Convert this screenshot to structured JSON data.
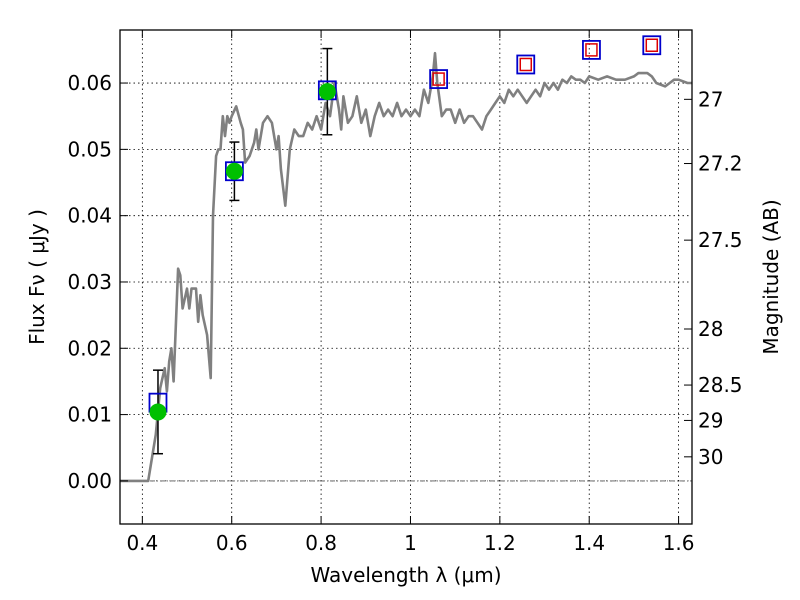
{
  "chart_data": {
    "type": "scatter",
    "xlabel": "Wavelength  λ (μm)",
    "ylabel": "Flux  Fν  ( μJy )",
    "y2label": "Magnitude (AB)",
    "xlim": [
      0.35,
      1.63
    ],
    "ylim": [
      -0.0065,
      0.068
    ],
    "grid": true,
    "x_ticks": [
      {
        "v": 0.4,
        "label": "0.4"
      },
      {
        "v": 0.6,
        "label": "0.6"
      },
      {
        "v": 0.8,
        "label": "0.8"
      },
      {
        "v": 1.0,
        "label": "1"
      },
      {
        "v": 1.2,
        "label": "1.2"
      },
      {
        "v": 1.4,
        "label": "1.4"
      },
      {
        "v": 1.6,
        "label": "1.6"
      }
    ],
    "y_ticks": [
      {
        "v": 0.0,
        "label": "0.00"
      },
      {
        "v": 0.01,
        "label": "0.01"
      },
      {
        "v": 0.02,
        "label": "0.02"
      },
      {
        "v": 0.03,
        "label": "0.03"
      },
      {
        "v": 0.04,
        "label": "0.04"
      },
      {
        "v": 0.05,
        "label": "0.05"
      },
      {
        "v": 0.06,
        "label": "0.06"
      }
    ],
    "mag_ticks": [
      {
        "v": 27,
        "label": "27"
      },
      {
        "v": 27.2,
        "label": "27.2"
      },
      {
        "v": 27.5,
        "label": "27.5"
      },
      {
        "v": 28,
        "label": "28"
      },
      {
        "v": 28.5,
        "label": "28.5"
      },
      {
        "v": 29,
        "label": "29"
      },
      {
        "v": 30,
        "label": "30"
      }
    ],
    "model_spectrum": [
      [
        0.35,
        0.0
      ],
      [
        0.41,
        0.0
      ],
      [
        0.413,
        0.0
      ],
      [
        0.43,
        0.007
      ],
      [
        0.44,
        0.014
      ],
      [
        0.45,
        0.017
      ],
      [
        0.455,
        0.0135
      ],
      [
        0.46,
        0.018
      ],
      [
        0.465,
        0.02
      ],
      [
        0.47,
        0.015
      ],
      [
        0.48,
        0.032
      ],
      [
        0.485,
        0.031
      ],
      [
        0.49,
        0.026
      ],
      [
        0.5,
        0.029
      ],
      [
        0.505,
        0.026
      ],
      [
        0.51,
        0.029
      ],
      [
        0.52,
        0.029
      ],
      [
        0.525,
        0.024
      ],
      [
        0.53,
        0.028
      ],
      [
        0.535,
        0.025
      ],
      [
        0.545,
        0.022
      ],
      [
        0.553,
        0.0155
      ],
      [
        0.558,
        0.04
      ],
      [
        0.565,
        0.049
      ],
      [
        0.57,
        0.05
      ],
      [
        0.575,
        0.05
      ],
      [
        0.58,
        0.055
      ],
      [
        0.585,
        0.052
      ],
      [
        0.59,
        0.055
      ],
      [
        0.595,
        0.054
      ],
      [
        0.6,
        0.055
      ],
      [
        0.61,
        0.0565
      ],
      [
        0.62,
        0.054
      ],
      [
        0.625,
        0.053
      ],
      [
        0.63,
        0.048
      ],
      [
        0.64,
        0.049
      ],
      [
        0.65,
        0.051
      ],
      [
        0.655,
        0.053
      ],
      [
        0.66,
        0.05
      ],
      [
        0.67,
        0.054
      ],
      [
        0.68,
        0.055
      ],
      [
        0.69,
        0.054
      ],
      [
        0.7,
        0.05
      ],
      [
        0.705,
        0.052
      ],
      [
        0.71,
        0.047
      ],
      [
        0.72,
        0.0415
      ],
      [
        0.73,
        0.05
      ],
      [
        0.74,
        0.053
      ],
      [
        0.75,
        0.052
      ],
      [
        0.76,
        0.052
      ],
      [
        0.77,
        0.054
      ],
      [
        0.78,
        0.053
      ],
      [
        0.79,
        0.055
      ],
      [
        0.8,
        0.053
      ],
      [
        0.81,
        0.057
      ],
      [
        0.82,
        0.055
      ],
      [
        0.83,
        0.06
      ],
      [
        0.84,
        0.056
      ],
      [
        0.845,
        0.053
      ],
      [
        0.85,
        0.058
      ],
      [
        0.86,
        0.054
      ],
      [
        0.87,
        0.055
      ],
      [
        0.88,
        0.058
      ],
      [
        0.89,
        0.054
      ],
      [
        0.9,
        0.056
      ],
      [
        0.91,
        0.052
      ],
      [
        0.92,
        0.055
      ],
      [
        0.93,
        0.057
      ],
      [
        0.94,
        0.055
      ],
      [
        0.95,
        0.056
      ],
      [
        0.96,
        0.055
      ],
      [
        0.97,
        0.057
      ],
      [
        0.98,
        0.055
      ],
      [
        0.99,
        0.056
      ],
      [
        1.0,
        0.055
      ],
      [
        1.01,
        0.056
      ],
      [
        1.02,
        0.055
      ],
      [
        1.03,
        0.059
      ],
      [
        1.04,
        0.057
      ],
      [
        1.05,
        0.061
      ],
      [
        1.055,
        0.0645
      ],
      [
        1.06,
        0.06
      ],
      [
        1.07,
        0.055
      ],
      [
        1.08,
        0.056
      ],
      [
        1.09,
        0.056
      ],
      [
        1.1,
        0.054
      ],
      [
        1.11,
        0.056
      ],
      [
        1.12,
        0.054
      ],
      [
        1.13,
        0.055
      ],
      [
        1.14,
        0.055
      ],
      [
        1.15,
        0.054
      ],
      [
        1.16,
        0.053
      ],
      [
        1.17,
        0.055
      ],
      [
        1.18,
        0.056
      ],
      [
        1.19,
        0.057
      ],
      [
        1.2,
        0.058
      ],
      [
        1.21,
        0.057
      ],
      [
        1.22,
        0.059
      ],
      [
        1.23,
        0.058
      ],
      [
        1.24,
        0.059
      ],
      [
        1.25,
        0.058
      ],
      [
        1.26,
        0.057
      ],
      [
        1.27,
        0.058
      ],
      [
        1.28,
        0.059
      ],
      [
        1.29,
        0.058
      ],
      [
        1.3,
        0.06
      ],
      [
        1.31,
        0.059
      ],
      [
        1.32,
        0.06
      ],
      [
        1.33,
        0.059
      ],
      [
        1.34,
        0.0605
      ],
      [
        1.35,
        0.06
      ],
      [
        1.36,
        0.061
      ],
      [
        1.37,
        0.0605
      ],
      [
        1.38,
        0.0605
      ],
      [
        1.39,
        0.06
      ],
      [
        1.4,
        0.061
      ],
      [
        1.42,
        0.0605
      ],
      [
        1.44,
        0.061
      ],
      [
        1.46,
        0.0605
      ],
      [
        1.48,
        0.0605
      ],
      [
        1.5,
        0.061
      ],
      [
        1.51,
        0.0615
      ],
      [
        1.53,
        0.0615
      ],
      [
        1.54,
        0.061
      ],
      [
        1.55,
        0.06
      ],
      [
        1.57,
        0.0595
      ],
      [
        1.58,
        0.06
      ],
      [
        1.59,
        0.0605
      ],
      [
        1.6,
        0.0605
      ],
      [
        1.62,
        0.06
      ],
      [
        1.63,
        0.06
      ]
    ],
    "observed_points": [
      {
        "x": 0.435,
        "y": 0.0104,
        "err": 0.0063
      },
      {
        "x": 0.606,
        "y": 0.0467,
        "err": 0.0044
      },
      {
        "x": 0.814,
        "y": 0.0587,
        "err": 0.0065
      }
    ],
    "model_band_fluxes": [
      {
        "x": 0.435,
        "y": 0.0118
      },
      {
        "x": 0.606,
        "y": 0.0467
      },
      {
        "x": 0.814,
        "y": 0.0589
      },
      {
        "x": 1.063,
        "y": 0.0606
      },
      {
        "x": 1.258,
        "y": 0.0628
      },
      {
        "x": 1.405,
        "y": 0.065
      },
      {
        "x": 1.54,
        "y": 0.0657
      }
    ],
    "upper_limit_bands": [
      {
        "x": 1.063,
        "y": 0.0606
      },
      {
        "x": 1.258,
        "y": 0.0628
      },
      {
        "x": 1.405,
        "y": 0.065
      },
      {
        "x": 1.54,
        "y": 0.0657
      }
    ],
    "colors": {
      "spectrum": "#808080",
      "observed": "#00c000",
      "model_box": "#0000cc",
      "upper_box": "#dd0000",
      "grid": "#000000"
    }
  }
}
